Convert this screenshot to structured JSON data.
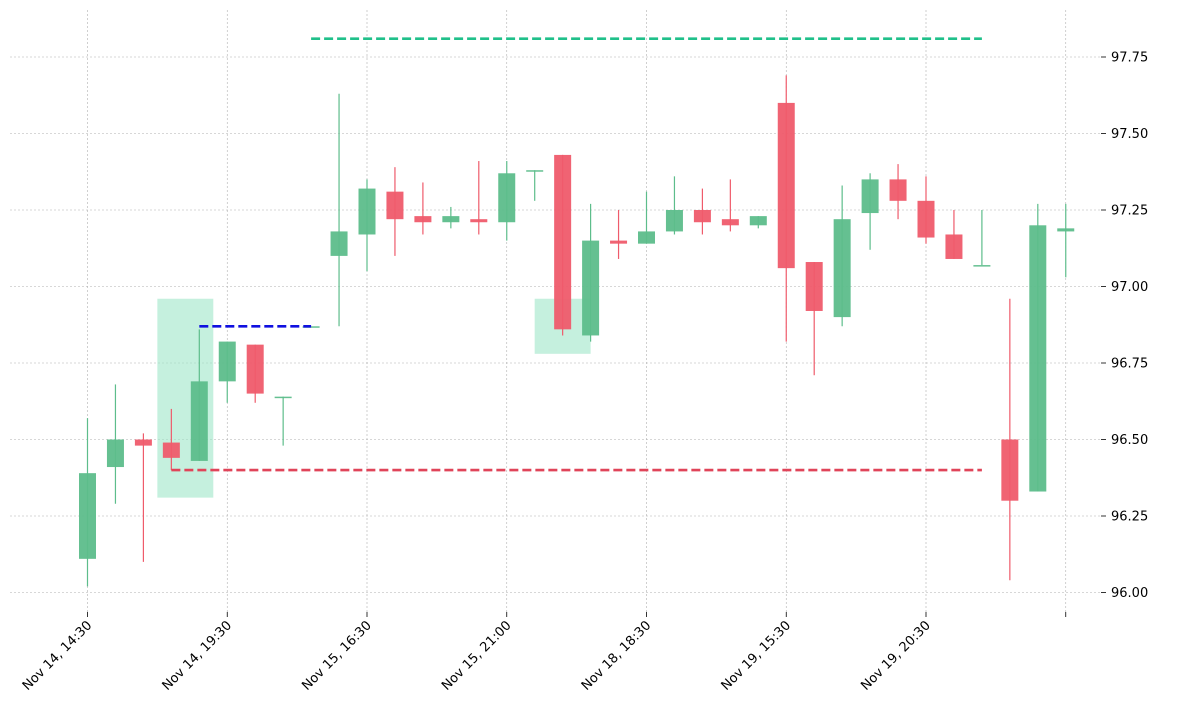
{
  "chart_data": {
    "type": "candlestick",
    "title": "",
    "xlabel": "",
    "ylabel": "",
    "ylim": [
      95.94,
      97.83
    ],
    "y_ticks": [
      96.0,
      96.25,
      96.5,
      96.75,
      97.0,
      97.25,
      97.5,
      97.75
    ],
    "y_tick_labels": [
      "96.00",
      "96.25",
      "96.50",
      "96.75",
      "97.00",
      "97.25",
      "97.50",
      "97.75"
    ],
    "x_ticks": [
      0,
      5,
      10,
      15,
      20,
      25,
      30,
      35
    ],
    "x_tick_labels": [
      "Nov 14, 14:30",
      "Nov 14, 19:30",
      "Nov 15, 16:30",
      "Nov 15, 21:00",
      "Nov 18, 18:30",
      "Nov 19, 15:30",
      "Nov 19, 20:30",
      ""
    ],
    "grid": true,
    "colors": {
      "up": "#5dbd8b",
      "down": "#ef5b6b"
    },
    "candles": [
      {
        "i": 0,
        "open": 96.11,
        "high": 96.57,
        "low": 96.02,
        "close": 96.39
      },
      {
        "i": 1,
        "open": 96.41,
        "high": 96.68,
        "low": 96.29,
        "close": 96.5
      },
      {
        "i": 2,
        "open": 96.5,
        "high": 96.52,
        "low": 96.1,
        "close": 96.48
      },
      {
        "i": 3,
        "open": 96.49,
        "high": 96.6,
        "low": 96.4,
        "close": 96.44
      },
      {
        "i": 4,
        "open": 96.43,
        "high": 96.86,
        "low": 96.43,
        "close": 96.69
      },
      {
        "i": 5,
        "open": 96.69,
        "high": 96.82,
        "low": 96.62,
        "close": 96.82
      },
      {
        "i": 6,
        "open": 96.81,
        "high": 96.81,
        "low": 96.62,
        "close": 96.65
      },
      {
        "i": 7,
        "open": 96.64,
        "high": 96.64,
        "low": 96.48,
        "close": 96.64
      },
      {
        "i": 8,
        "open": 96.87,
        "high": 96.87,
        "low": 96.87,
        "close": 96.87
      },
      {
        "i": 9,
        "open": 97.1,
        "high": 97.63,
        "low": 96.87,
        "close": 97.18
      },
      {
        "i": 10,
        "open": 97.17,
        "high": 97.35,
        "low": 97.05,
        "close": 97.32
      },
      {
        "i": 11,
        "open": 97.31,
        "high": 97.39,
        "low": 97.1,
        "close": 97.22
      },
      {
        "i": 12,
        "open": 97.23,
        "high": 97.34,
        "low": 97.17,
        "close": 97.21
      },
      {
        "i": 13,
        "open": 97.21,
        "high": 97.26,
        "low": 97.19,
        "close": 97.23
      },
      {
        "i": 14,
        "open": 97.22,
        "high": 97.41,
        "low": 97.17,
        "close": 97.21
      },
      {
        "i": 15,
        "open": 97.21,
        "high": 97.41,
        "low": 97.15,
        "close": 97.37
      },
      {
        "i": 16,
        "open": 97.38,
        "high": 97.38,
        "low": 97.28,
        "close": 97.38
      },
      {
        "i": 17,
        "open": 97.43,
        "high": 97.43,
        "low": 96.84,
        "close": 96.86
      },
      {
        "i": 18,
        "open": 96.84,
        "high": 97.27,
        "low": 96.82,
        "close": 97.15
      },
      {
        "i": 19,
        "open": 97.15,
        "high": 97.25,
        "low": 97.09,
        "close": 97.14
      },
      {
        "i": 20,
        "open": 97.14,
        "high": 97.31,
        "low": 97.14,
        "close": 97.18
      },
      {
        "i": 21,
        "open": 97.18,
        "high": 97.36,
        "low": 97.17,
        "close": 97.25
      },
      {
        "i": 22,
        "open": 97.25,
        "high": 97.32,
        "low": 97.17,
        "close": 97.21
      },
      {
        "i": 23,
        "open": 97.22,
        "high": 97.35,
        "low": 97.18,
        "close": 97.2
      },
      {
        "i": 24,
        "open": 97.2,
        "high": 97.23,
        "low": 97.19,
        "close": 97.23
      },
      {
        "i": 25,
        "open": 97.6,
        "high": 97.69,
        "low": 96.82,
        "close": 97.06
      },
      {
        "i": 26,
        "open": 97.08,
        "high": 97.08,
        "low": 96.71,
        "close": 96.92
      },
      {
        "i": 27,
        "open": 96.9,
        "high": 97.33,
        "low": 96.87,
        "close": 97.22
      },
      {
        "i": 28,
        "open": 97.24,
        "high": 97.37,
        "low": 97.12,
        "close": 97.35
      },
      {
        "i": 29,
        "open": 97.35,
        "high": 97.4,
        "low": 97.22,
        "close": 97.28
      },
      {
        "i": 30,
        "open": 97.28,
        "high": 97.36,
        "low": 97.14,
        "close": 97.16
      },
      {
        "i": 31,
        "open": 97.17,
        "high": 97.25,
        "low": 97.09,
        "close": 97.09
      },
      {
        "i": 32,
        "open": 97.07,
        "high": 97.25,
        "low": 97.07,
        "close": 97.07
      },
      {
        "i": 33,
        "open": 96.5,
        "high": 96.96,
        "low": 96.04,
        "close": 96.3
      },
      {
        "i": 34,
        "open": 96.33,
        "high": 97.27,
        "low": 96.33,
        "close": 97.2
      },
      {
        "i": 35,
        "open": 97.18,
        "high": 97.27,
        "low": 97.03,
        "close": 97.19
      }
    ],
    "levels": [
      {
        "name": "resistance",
        "value": 97.81,
        "x_start": 8,
        "x_end": 32,
        "color": "#20c08a"
      },
      {
        "name": "support",
        "value": 96.4,
        "x_start": 3,
        "x_end": 32,
        "color": "#e04459"
      },
      {
        "name": "breakout",
        "value": 96.87,
        "x_start": 4,
        "x_end": 8,
        "color": "#1010e0"
      }
    ],
    "highlights": [
      {
        "x_start": 3,
        "x_end": 4,
        "y_low": 96.31,
        "y_high": 96.96,
        "color": "#9fe6c8"
      },
      {
        "x_start": 16.5,
        "x_end": 17.5,
        "y_low": 96.78,
        "y_high": 96.96,
        "color": "#9fe6c8"
      }
    ]
  }
}
